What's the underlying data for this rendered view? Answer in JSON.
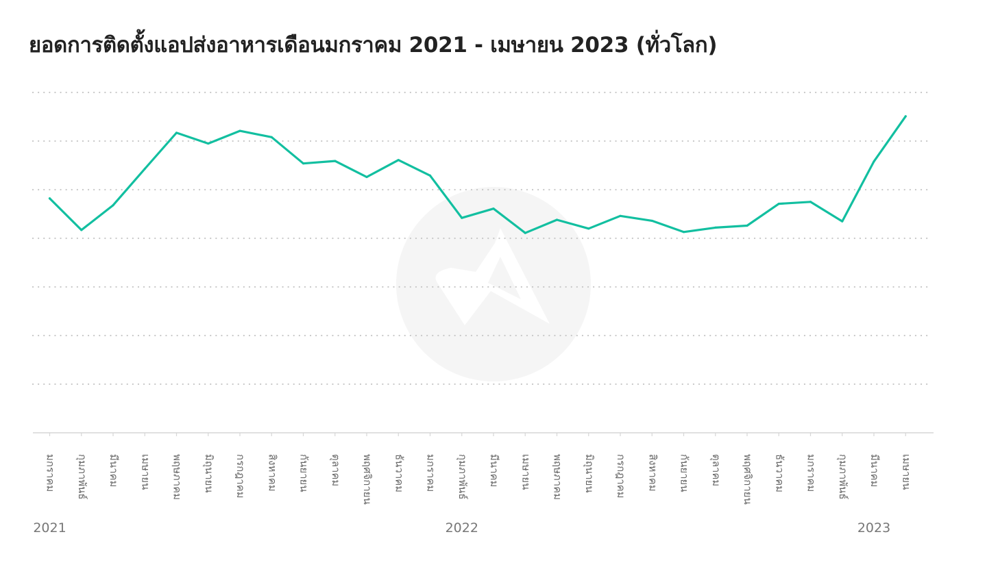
{
  "chart_data": {
    "type": "line",
    "title": "ยอดการติดตั้งแอปส่งอาหารเดือนมกราคม 2021 - เมษายน 2023 (ทั่วโลก)",
    "xlabel": "",
    "ylabel": "",
    "y_tick_labels_shown": false,
    "grid": "horizontal dotted",
    "legend": "none",
    "accent_color": "#12BFA0",
    "watermark": "adjust-logo",
    "x_tick_labels": [
      "มกราคม",
      "กุมภาพันธ์",
      "มีนาคม",
      "เมษายน",
      "พฤษภาคม",
      "มิถุนายน",
      "กรกฎาคม",
      "สิงหาคม",
      "กันยายน",
      "ตุลาคม",
      "พฤศจิกายน",
      "ธันวาคม",
      "มกราคม",
      "กุมภาพันธ์",
      "มีนาคม",
      "เมษายน",
      "พฤษภาคม",
      "มิถุนายน",
      "กรกฎาคม",
      "สิงหาคม",
      "กันยายน",
      "ตุลาคม",
      "พฤศจิกายน",
      "ธันวาคม",
      "มกราคม",
      "กุมภาพันธ์",
      "มีนาคม",
      "เมษายน"
    ],
    "year_labels": [
      {
        "label": "2021",
        "month_index": 0
      },
      {
        "label": "2022",
        "month_index": 13
      },
      {
        "label": "2023",
        "month_index": 26
      }
    ],
    "ylim": [
      0,
      7
    ],
    "series": [
      {
        "values": [
          4.82,
          4.17,
          4.68,
          5.43,
          6.17,
          5.95,
          6.21,
          6.08,
          5.54,
          5.59,
          5.26,
          5.61,
          5.29,
          4.42,
          4.61,
          4.11,
          4.38,
          4.2,
          4.46,
          4.36,
          4.13,
          4.22,
          4.26,
          4.71,
          4.75,
          4.35,
          5.58,
          6.51
        ]
      }
    ]
  }
}
